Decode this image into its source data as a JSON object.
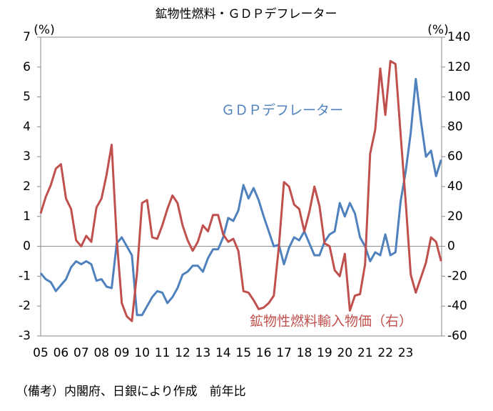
{
  "chart_data": {
    "type": "line",
    "title": "鉱物性燃料・ＧＤＰデフレーター",
    "y_label": "(%)",
    "y2_label": "(%)",
    "note": "（備考）内閣府、日銀により作成　前年比",
    "categories": [
      "05",
      null,
      null,
      null,
      "06",
      null,
      null,
      null,
      "07",
      null,
      null,
      null,
      "08",
      null,
      null,
      null,
      "09",
      null,
      null,
      null,
      "10",
      null,
      null,
      null,
      "11",
      null,
      null,
      null,
      "12",
      null,
      null,
      null,
      "13",
      null,
      null,
      null,
      "14",
      null,
      null,
      null,
      "15",
      null,
      null,
      null,
      "16",
      null,
      null,
      null,
      "17",
      null,
      null,
      null,
      "18",
      null,
      null,
      null,
      "19",
      null,
      null,
      null,
      "20",
      null,
      null,
      null,
      "21",
      null,
      null,
      null,
      "22",
      null,
      null,
      null,
      "23",
      null,
      null,
      null,
      null,
      null,
      null,
      null
    ],
    "ylim": [
      -3,
      7
    ],
    "yticks": [
      -3,
      -2,
      -1,
      0,
      1,
      2,
      3,
      4,
      5,
      6,
      7
    ],
    "y2lim": [
      -60,
      140
    ],
    "y2ticks": [
      -60,
      -40,
      -20,
      0,
      20,
      40,
      60,
      80,
      100,
      120,
      140
    ],
    "series": [
      {
        "name": "ＧＤＰデフレーター",
        "color": "#4f81bd",
        "axis": "y",
        "values": [
          -0.9,
          -1.1,
          -1.2,
          -1.5,
          -1.3,
          -1.1,
          -0.7,
          -0.5,
          -0.6,
          -0.5,
          -0.6,
          -1.15,
          -1.1,
          -1.35,
          -1.4,
          0.1,
          0.3,
          0.0,
          -0.3,
          -2.3,
          -2.3,
          -2.0,
          -1.7,
          -1.5,
          -1.55,
          -1.9,
          -1.7,
          -1.4,
          -0.95,
          -0.85,
          -0.65,
          -0.65,
          -0.85,
          -0.4,
          -0.1,
          -0.1,
          0.3,
          0.95,
          0.85,
          1.2,
          2.05,
          1.6,
          1.95,
          1.55,
          1.0,
          0.5,
          0.0,
          0.05,
          -0.6,
          -0.05,
          0.3,
          0.2,
          0.5,
          0.1,
          -0.3,
          -0.3,
          0.15,
          0.4,
          0.5,
          1.45,
          1.0,
          1.45,
          1.1,
          0.3,
          0.0,
          -0.5,
          -0.2,
          -0.3,
          0.4,
          -0.3,
          -0.2,
          1.5,
          2.5,
          3.8,
          5.6,
          4.2,
          3.0,
          3.2,
          2.35,
          2.9
        ]
      },
      {
        "name": "鉱物性燃料輸入物価（右）",
        "color": "#c0504d",
        "axis": "y2",
        "values": [
          22,
          33,
          41,
          52,
          55,
          32,
          25,
          4,
          0,
          7,
          3,
          26,
          32,
          48,
          68,
          5,
          -38,
          -47,
          -50,
          -18,
          29,
          31,
          6,
          5,
          14,
          25,
          34,
          29,
          14,
          4,
          -3,
          3,
          14,
          10,
          21,
          21,
          8,
          3,
          5,
          -3,
          -30,
          -31,
          -36,
          -42,
          -41,
          -38,
          -33,
          0,
          43,
          40,
          28,
          25,
          10,
          23,
          40,
          27,
          2,
          0,
          -16,
          -20,
          -5,
          -43,
          -33,
          -32,
          -12,
          62,
          78,
          119,
          88,
          124,
          122,
          75,
          30,
          -19,
          -31,
          -21,
          -11,
          6,
          3,
          -10
        ]
      }
    ]
  }
}
